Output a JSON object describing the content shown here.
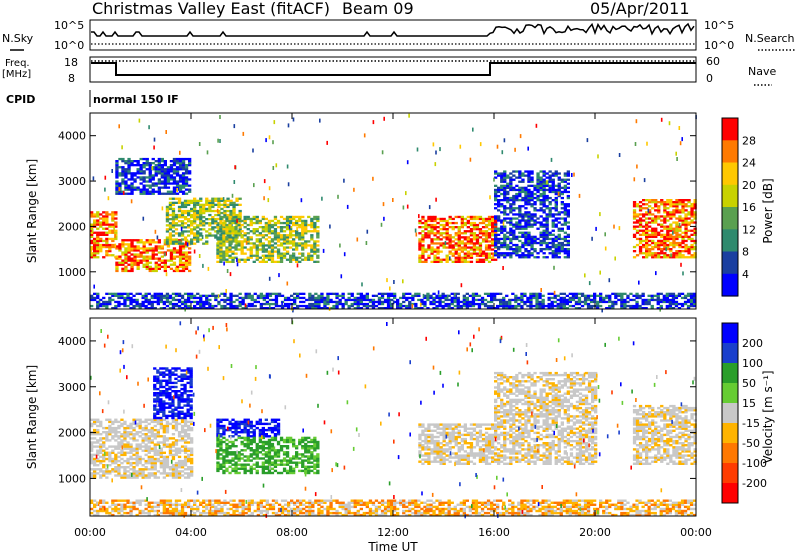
{
  "header": {
    "title": "Christmas Valley East (fitACF)",
    "beam": "Beam 09",
    "date": "05/Apr/2011"
  },
  "status_panels": {
    "nsky_label": "N.Sky",
    "nsky_ticks": [
      "10^5",
      "10^0"
    ],
    "nsearch_label": "N.Search",
    "nsearch_ticks": [
      "10^5",
      "10^0"
    ],
    "freq_label_line1": "Freq.",
    "freq_label_line2": "[MHz]",
    "freq_ticks": [
      "18",
      "8"
    ],
    "nave_label": "Nave",
    "nave_ticks": [
      "60",
      "0"
    ],
    "cpid_label": "CPID",
    "cpid_value": "normal 150 IF"
  },
  "chart_data": [
    {
      "type": "heatmap",
      "name": "power",
      "ylabel": "Slant Range [km]",
      "xlabel": "",
      "yticks": [
        "4000",
        "3000",
        "2000",
        "1000"
      ],
      "ylim": [
        180,
        4500
      ],
      "xlim_hours": [
        0,
        24
      ],
      "colorbar_label": "Power [dB]",
      "colorbar_ticks": [
        "28",
        "24",
        "20",
        "16",
        "12",
        "8",
        "4"
      ],
      "colorbar_colors": [
        "#ff0000",
        "#ff7a00",
        "#ffc800",
        "#c8d200",
        "#5aa050",
        "#2f8a6e",
        "#1a3fa0",
        "#0000ff"
      ],
      "echo_regions": [
        {
          "t0": 0.0,
          "t1": 1.0,
          "r0": 1300,
          "r1": 2300,
          "level": "high"
        },
        {
          "t0": 1.0,
          "t1": 4.0,
          "r0": 1000,
          "r1": 1700,
          "level": "high"
        },
        {
          "t0": 3.0,
          "t1": 6.0,
          "r0": 1600,
          "r1": 2600,
          "level": "mid"
        },
        {
          "t0": 1.0,
          "t1": 4.0,
          "r0": 2700,
          "r1": 3500,
          "level": "low"
        },
        {
          "t0": 5.0,
          "t1": 9.0,
          "r0": 1200,
          "r1": 2200,
          "level": "mid"
        },
        {
          "t0": 13.0,
          "t1": 16.0,
          "r0": 1200,
          "r1": 2200,
          "level": "high"
        },
        {
          "t0": 16.0,
          "t1": 19.0,
          "r0": 1300,
          "r1": 3200,
          "level": "low"
        },
        {
          "t0": 21.5,
          "t1": 24.0,
          "r0": 1300,
          "r1": 2600,
          "level": "high"
        },
        {
          "t0": 0.0,
          "t1": 24.0,
          "r0": 180,
          "r1": 500,
          "level": "low"
        }
      ]
    },
    {
      "type": "heatmap",
      "name": "velocity",
      "ylabel": "Slant Range [km]",
      "xlabel": "Time UT",
      "yticks": [
        "4000",
        "3000",
        "2000",
        "1000"
      ],
      "ylim": [
        180,
        4500
      ],
      "xlim_hours": [
        0,
        24
      ],
      "xticks": [
        "00:00",
        "04:00",
        "08:00",
        "12:00",
        "16:00",
        "20:00",
        "00:00"
      ],
      "colorbar_label": "Velocity [m s⁻¹]",
      "colorbar_ticks": [
        "200",
        "100",
        "50",
        "15",
        "-15",
        "-50",
        "-100",
        "-200"
      ],
      "colorbar_colors": [
        "#0000ff",
        "#1a3fcc",
        "#2a9e2a",
        "#66cc33",
        "#c8c8c8",
        "#ffb400",
        "#ff7800",
        "#ff3c00",
        "#ff0000"
      ],
      "echo_regions": [
        {
          "t0": 0.0,
          "t1": 4.0,
          "r0": 1000,
          "r1": 2300,
          "level": "gray"
        },
        {
          "t0": 2.5,
          "t1": 4.0,
          "r0": 2300,
          "r1": 3400,
          "level": "blue"
        },
        {
          "t0": 5.0,
          "t1": 7.5,
          "r0": 1900,
          "r1": 2300,
          "level": "blue"
        },
        {
          "t0": 5.0,
          "t1": 9.0,
          "r0": 1100,
          "r1": 1900,
          "level": "green"
        },
        {
          "t0": 13.0,
          "t1": 16.0,
          "r0": 1300,
          "r1": 2200,
          "level": "gray"
        },
        {
          "t0": 16.0,
          "t1": 20.0,
          "r0": 1300,
          "r1": 3300,
          "level": "gray"
        },
        {
          "t0": 21.5,
          "t1": 24.0,
          "r0": 1300,
          "r1": 2600,
          "level": "gray"
        },
        {
          "t0": 0.0,
          "t1": 24.0,
          "r0": 180,
          "r1": 500,
          "level": "orange"
        }
      ]
    }
  ]
}
